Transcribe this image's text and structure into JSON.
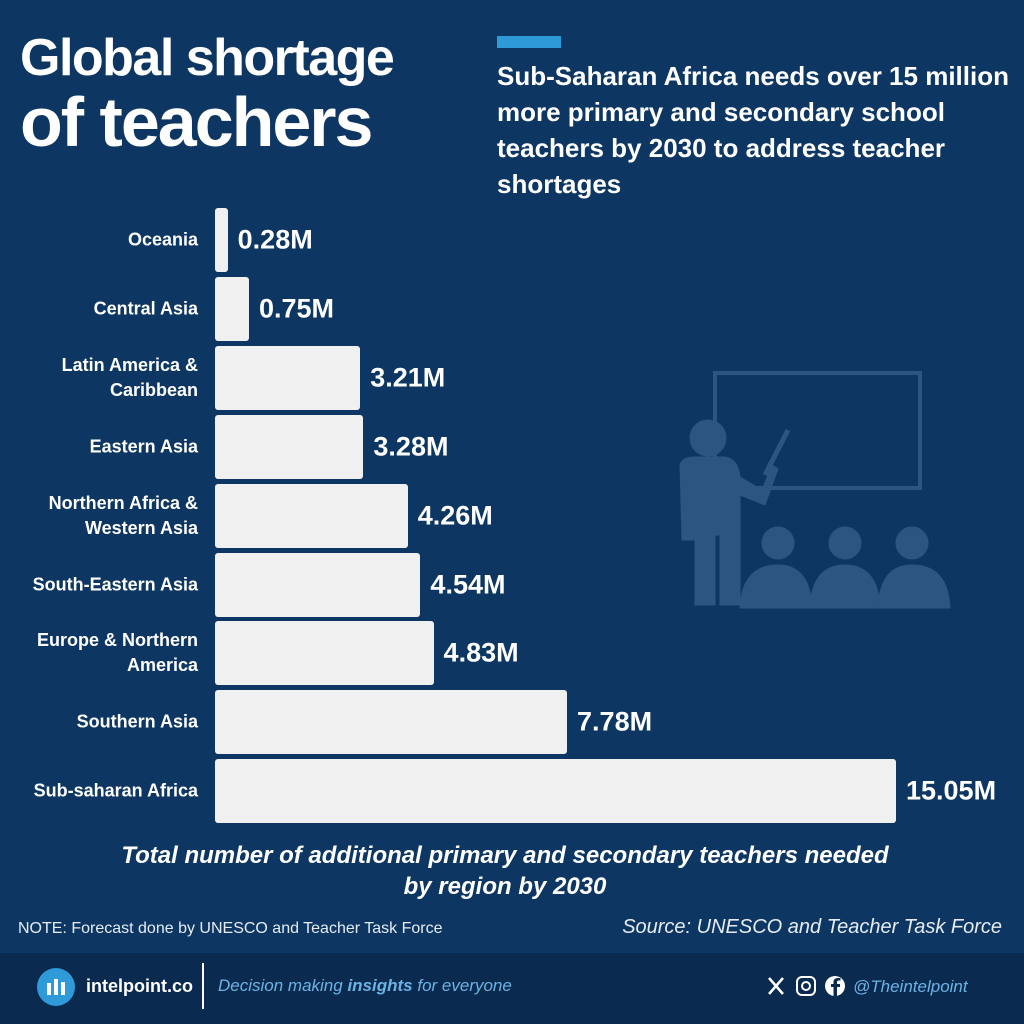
{
  "chart_data": {
    "type": "bar",
    "orientation": "horizontal",
    "title": [
      "Global shortage",
      "of teachers"
    ],
    "subtitle": "Sub-Saharan Africa needs over 15 million more primary and secondary school teachers by 2030 to address teacher shortages",
    "categories": [
      "Oceania",
      "Central Asia",
      "Latin America & Caribbean",
      "Eastern Asia",
      "Northern Africa & Western Asia",
      "South-Eastern Asia",
      "Europe & Northern America",
      "Southern Asia",
      "Sub-saharan Africa"
    ],
    "values": [
      0.28,
      0.75,
      3.21,
      3.28,
      4.26,
      4.54,
      4.83,
      7.78,
      15.05
    ],
    "value_labels": [
      "0.28M",
      "0.75M",
      "3.21M",
      "3.28M",
      "4.26M",
      "4.54M",
      "4.83M",
      "7.78M",
      "15.05M"
    ],
    "color": "#f0f0f0",
    "caption": "Total number of additional primary and secondary teachers needed by region by 2030",
    "note": "NOTE: Forecast done by UNESCO and Teacher Task Force",
    "source": "Source: UNESCO and Teacher Task Force"
  },
  "footer": {
    "brand": "intelpoint.co",
    "tagline": [
      "Decision making ",
      "insights",
      " for everyone"
    ],
    "handle": "@Theintelpoint"
  }
}
